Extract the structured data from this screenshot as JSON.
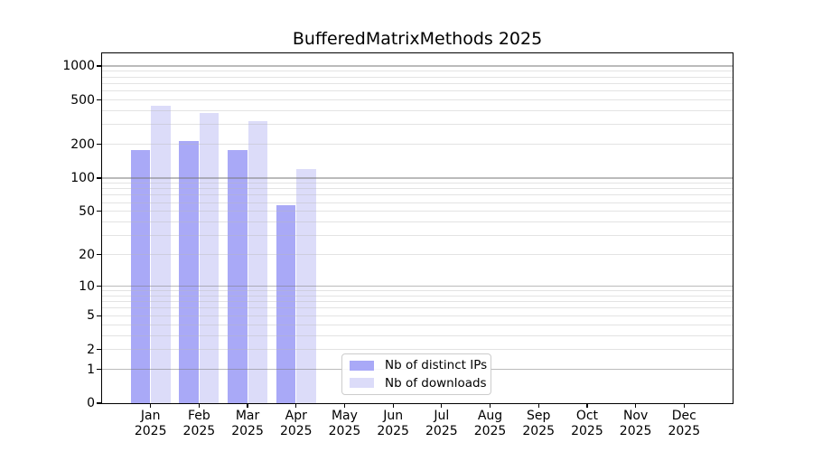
{
  "chart_data": {
    "type": "bar",
    "title": "BufferedMatrixMethods 2025",
    "year_label": "2025",
    "categories": [
      "Jan",
      "Feb",
      "Mar",
      "Apr",
      "May",
      "Jun",
      "Jul",
      "Aug",
      "Sep",
      "Oct",
      "Nov",
      "Dec"
    ],
    "series": [
      {
        "name": "Nb of distinct IPs",
        "color": "#a9a9f7",
        "values": [
          178,
          216,
          179,
          57,
          0,
          0,
          0,
          0,
          0,
          0,
          0,
          0
        ]
      },
      {
        "name": "Nb of downloads",
        "color": "#dcdcf9",
        "values": [
          447,
          381,
          322,
          121,
          0,
          0,
          0,
          0,
          0,
          0,
          0,
          0
        ]
      }
    ],
    "xlabel": "",
    "ylabel": "",
    "yaxis": {
      "scale": "log10(1+v)",
      "tick_values": [
        0,
        1,
        2,
        5,
        10,
        20,
        50,
        100,
        200,
        500,
        1000
      ],
      "tick_labels": [
        "0",
        "1",
        "2",
        "5",
        "10",
        "20",
        "50",
        "100",
        "200",
        "500",
        "1000"
      ],
      "ylim": [
        0,
        1300
      ],
      "grid_major": [
        1,
        10,
        100,
        1000
      ],
      "grid_minor": [
        2,
        3,
        4,
        5,
        6,
        7,
        8,
        9,
        20,
        30,
        40,
        50,
        60,
        70,
        80,
        90,
        200,
        300,
        400,
        500,
        600,
        700,
        800,
        900
      ],
      "grid": "on"
    },
    "legend_position": "lower-center-inside",
    "colors": {
      "axis": "#000000",
      "text": "#000000",
      "background": "#ffffff"
    }
  }
}
